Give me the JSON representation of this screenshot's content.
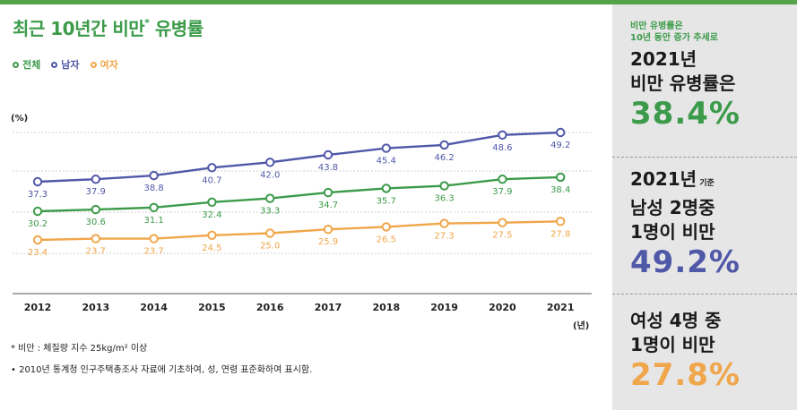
{
  "header": {
    "title": "최근 10년간 비만",
    "title_mark": "*",
    "title_tail": " 유병률"
  },
  "legend": [
    {
      "label": "전체",
      "color": "#3c9b4a"
    },
    {
      "label": "남자",
      "color": "#5058a8"
    },
    {
      "label": "여자",
      "color": "#f0a64a"
    }
  ],
  "axis_units": {
    "y": "(%)",
    "x": "(년)"
  },
  "chart_data": {
    "type": "line",
    "x": [
      "2012",
      "2013",
      "2014",
      "2015",
      "2016",
      "2017",
      "2018",
      "2019",
      "2020",
      "2021"
    ],
    "series": [
      {
        "name": "남자",
        "color": "#5058a8",
        "values": [
          37.3,
          37.9,
          38.8,
          40.7,
          42.0,
          43.8,
          45.4,
          46.2,
          48.6,
          49.2
        ]
      },
      {
        "name": "전체",
        "color": "#3c9b4a",
        "values": [
          30.2,
          30.6,
          31.1,
          32.4,
          33.3,
          34.7,
          35.7,
          36.3,
          37.9,
          38.4
        ]
      },
      {
        "name": "여자",
        "color": "#f0a64a",
        "values": [
          23.4,
          23.7,
          23.7,
          24.5,
          25.0,
          25.9,
          26.5,
          27.3,
          27.5,
          27.8
        ]
      }
    ],
    "ylabel": "(%)",
    "xlabel": "(년)",
    "grid": true
  },
  "notes": [
    "* 비만 : 체질량 지수 25kg/m² 이상",
    "• 2010년 통계청 인구주택총조사 자료에 기초하여, 성, 연령 표준화하여 표시함."
  ],
  "sidebar": {
    "s1_small": [
      "비만 유병률은",
      "10년 동안 증가 추세로"
    ],
    "s1_head": [
      "2021년",
      "비만 유병률은"
    ],
    "s1_big": "38.4%",
    "s2_head1": "2021년",
    "s2_head1_small": " 기준",
    "s2_head": [
      "남성 2명중",
      "1명이 비만"
    ],
    "s2_big": "49.2%",
    "s3_head": [
      "여성 4명 중",
      "1명이 비만"
    ],
    "s3_big": "27.8%",
    "colors": {
      "green": "#3c9b4a",
      "blue": "#5058a8",
      "orange": "#f0a64a"
    }
  }
}
